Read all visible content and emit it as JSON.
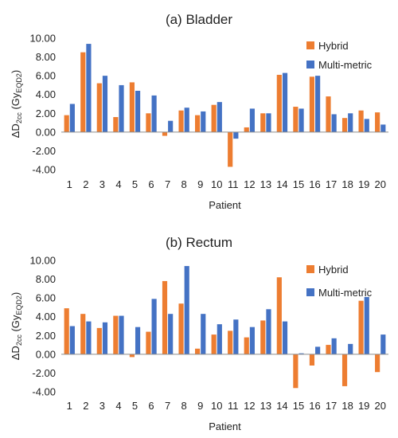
{
  "colors": {
    "hybrid": "#ED7D31",
    "multi": "#4472C4",
    "axis": "#8c8c8c"
  },
  "chart_data": [
    {
      "type": "bar",
      "title": "(a) Bladder",
      "xlabel": "Patient",
      "ylabel_main": "ΔD",
      "ylabel_sub": "2cc",
      "ylabel_unit_open": " (Gy",
      "ylabel_unit_sub": "EQD2",
      "ylabel_unit_close": ")",
      "ylim": [
        -4,
        10
      ],
      "yticks": [
        "-4.00",
        "-2.00",
        "0.00",
        "2.00",
        "4.00",
        "6.00",
        "8.00",
        "10.00"
      ],
      "categories": [
        "1",
        "2",
        "3",
        "4",
        "5",
        "6",
        "7",
        "8",
        "9",
        "10",
        "11",
        "12",
        "13",
        "14",
        "15",
        "16",
        "17",
        "18",
        "19",
        "20"
      ],
      "legend": "top-right",
      "grid": false,
      "series": [
        {
          "name": "Hybrid",
          "values": [
            1.8,
            8.5,
            5.2,
            1.6,
            5.3,
            2.0,
            -0.4,
            2.3,
            1.8,
            2.9,
            -3.7,
            0.5,
            2.0,
            6.1,
            2.7,
            5.9,
            3.8,
            1.5,
            2.3,
            2.1
          ]
        },
        {
          "name": "Multi-metric",
          "values": [
            3.0,
            9.4,
            6.0,
            5.0,
            4.4,
            3.9,
            1.2,
            2.6,
            2.2,
            3.2,
            -0.7,
            2.5,
            2.0,
            6.3,
            2.5,
            6.0,
            1.9,
            2.0,
            1.4,
            0.8
          ]
        }
      ]
    },
    {
      "type": "bar",
      "title": "(b) Rectum",
      "xlabel": "Patient",
      "ylabel_main": "ΔD",
      "ylabel_sub": "2cc",
      "ylabel_unit_open": " (Gy",
      "ylabel_unit_sub": "EQD2",
      "ylabel_unit_close": ")",
      "ylim": [
        -4,
        10
      ],
      "yticks": [
        "-4.00",
        "-2.00",
        "0.00",
        "2.00",
        "4.00",
        "6.00",
        "8.00",
        "10.00"
      ],
      "categories": [
        "1",
        "2",
        "3",
        "4",
        "5",
        "6",
        "7",
        "8",
        "9",
        "10",
        "11",
        "12",
        "13",
        "14",
        "15",
        "16",
        "17",
        "18",
        "19",
        "20"
      ],
      "legend": "top-right",
      "grid": false,
      "series": [
        {
          "name": "Hybrid",
          "values": [
            4.9,
            4.3,
            2.8,
            4.1,
            -0.3,
            2.4,
            7.8,
            5.4,
            0.6,
            2.1,
            2.5,
            1.8,
            3.6,
            8.2,
            -3.6,
            -1.2,
            1.0,
            -3.4,
            5.7,
            -1.9
          ]
        },
        {
          "name": "Multi-metric",
          "values": [
            3.0,
            3.5,
            3.4,
            4.1,
            2.9,
            5.9,
            4.3,
            9.4,
            4.3,
            3.2,
            3.7,
            2.9,
            4.8,
            3.5,
            0.1,
            0.8,
            1.7,
            1.1,
            6.1,
            2.1
          ]
        }
      ]
    }
  ]
}
